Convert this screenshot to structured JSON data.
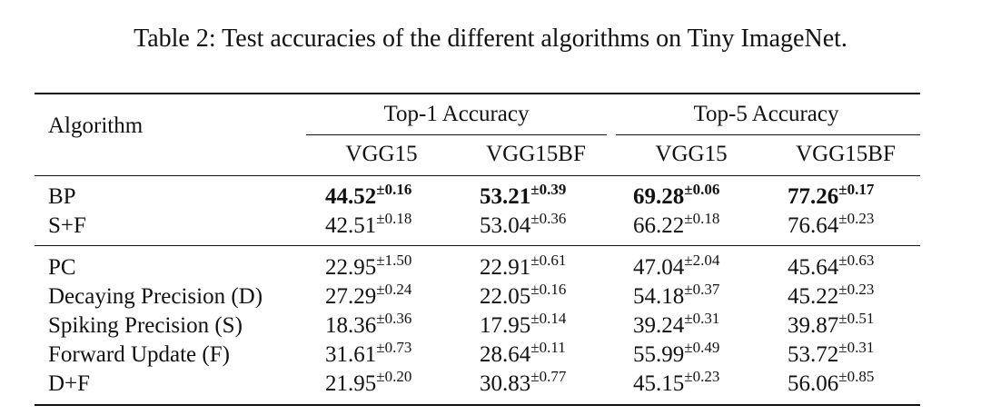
{
  "caption": "Table 2: Test accuracies of the different algorithms on Tiny ImageNet.",
  "table": {
    "header": {
      "algorithm": "Algorithm",
      "groups": [
        "Top-1 Accuracy",
        "Top-5 Accuracy"
      ],
      "models": [
        "VGG15",
        "VGG15BF",
        "VGG15",
        "VGG15BF"
      ]
    },
    "sections": [
      [
        {
          "name": "BP",
          "bold": true,
          "cells": [
            {
              "v": "44.52",
              "pm": "±0.16"
            },
            {
              "v": "53.21",
              "pm": "±0.39"
            },
            {
              "v": "69.28",
              "pm": "±0.06"
            },
            {
              "v": "77.26",
              "pm": "±0.17"
            }
          ]
        },
        {
          "name": "S+F",
          "bold": false,
          "cells": [
            {
              "v": "42.51",
              "pm": "±0.18"
            },
            {
              "v": "53.04",
              "pm": "±0.36"
            },
            {
              "v": "66.22",
              "pm": "±0.18"
            },
            {
              "v": "76.64",
              "pm": "±0.23"
            }
          ]
        }
      ],
      [
        {
          "name": "PC",
          "bold": false,
          "cells": [
            {
              "v": "22.95",
              "pm": "±1.50"
            },
            {
              "v": "22.91",
              "pm": "±0.61"
            },
            {
              "v": "47.04",
              "pm": "±2.04"
            },
            {
              "v": "45.64",
              "pm": "±0.63"
            }
          ]
        },
        {
          "name": "Decaying Precision (D)",
          "bold": false,
          "cells": [
            {
              "v": "27.29",
              "pm": "±0.24"
            },
            {
              "v": "22.05",
              "pm": "±0.16"
            },
            {
              "v": "54.18",
              "pm": "±0.37"
            },
            {
              "v": "45.22",
              "pm": "±0.23"
            }
          ]
        },
        {
          "name": "Spiking Precision (S)",
          "bold": false,
          "cells": [
            {
              "v": "18.36",
              "pm": "±0.36"
            },
            {
              "v": "17.95",
              "pm": "±0.14"
            },
            {
              "v": "39.24",
              "pm": "±0.31"
            },
            {
              "v": "39.87",
              "pm": "±0.51"
            }
          ]
        },
        {
          "name": "Forward Update (F)",
          "bold": false,
          "cells": [
            {
              "v": "31.61",
              "pm": "±0.73"
            },
            {
              "v": "28.64",
              "pm": "±0.11"
            },
            {
              "v": "55.99",
              "pm": "±0.49"
            },
            {
              "v": "53.72",
              "pm": "±0.31"
            }
          ]
        },
        {
          "name": "D+F",
          "bold": false,
          "cells": [
            {
              "v": "21.95",
              "pm": "±0.20"
            },
            {
              "v": "30.83",
              "pm": "±0.77"
            },
            {
              "v": "45.15",
              "pm": "±0.23"
            },
            {
              "v": "56.06",
              "pm": "±0.85"
            }
          ]
        }
      ]
    ]
  }
}
